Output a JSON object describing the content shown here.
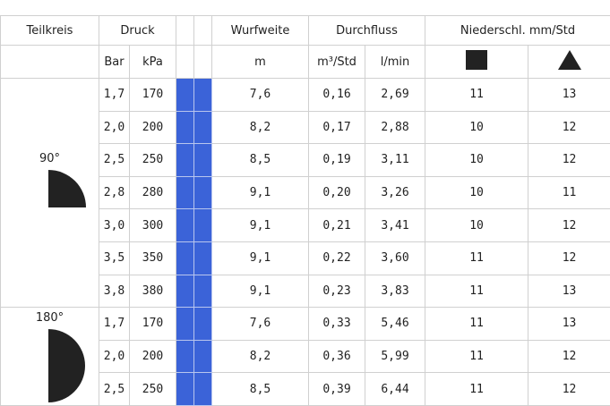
{
  "header": {
    "row1": {
      "teilkreis": "Teilkreis",
      "druck": "Druck",
      "wurfweite": "Wurfweite",
      "durchfluss": "Durchfluss",
      "niederschlag": "Niederschl. mm/Std"
    },
    "row2": {
      "bar": "Bar",
      "kpa": "kPa",
      "m": "m",
      "m3": "m³/Std",
      "lmin": "l/min"
    }
  },
  "groups": [
    {
      "label": "90°",
      "rows": [
        [
          "1,7",
          "170",
          "7,6",
          "0,16",
          "2,69",
          "11",
          "13"
        ],
        [
          "2,0",
          "200",
          "8,2",
          "0,17",
          "2,88",
          "10",
          "12"
        ],
        [
          "2,5",
          "250",
          "8,5",
          "0,19",
          "3,11",
          "10",
          "12"
        ],
        [
          "2,8",
          "280",
          "9,1",
          "0,20",
          "3,26",
          "10",
          "11"
        ],
        [
          "3,0",
          "300",
          "9,1",
          "0,21",
          "3,41",
          "10",
          "12"
        ],
        [
          "3,5",
          "350",
          "9,1",
          "0,22",
          "3,60",
          "11",
          "12"
        ],
        [
          "3,8",
          "380",
          "9,1",
          "0,23",
          "3,83",
          "11",
          "13"
        ]
      ]
    },
    {
      "label": "180°",
      "rows": [
        [
          "1,7",
          "170",
          "7,6",
          "0,33",
          "5,46",
          "11",
          "13"
        ],
        [
          "2,0",
          "200",
          "8,2",
          "0,36",
          "5,99",
          "11",
          "12"
        ],
        [
          "2,5",
          "250",
          "8,5",
          "0,39",
          "6,44",
          "11",
          "12"
        ]
      ]
    }
  ]
}
